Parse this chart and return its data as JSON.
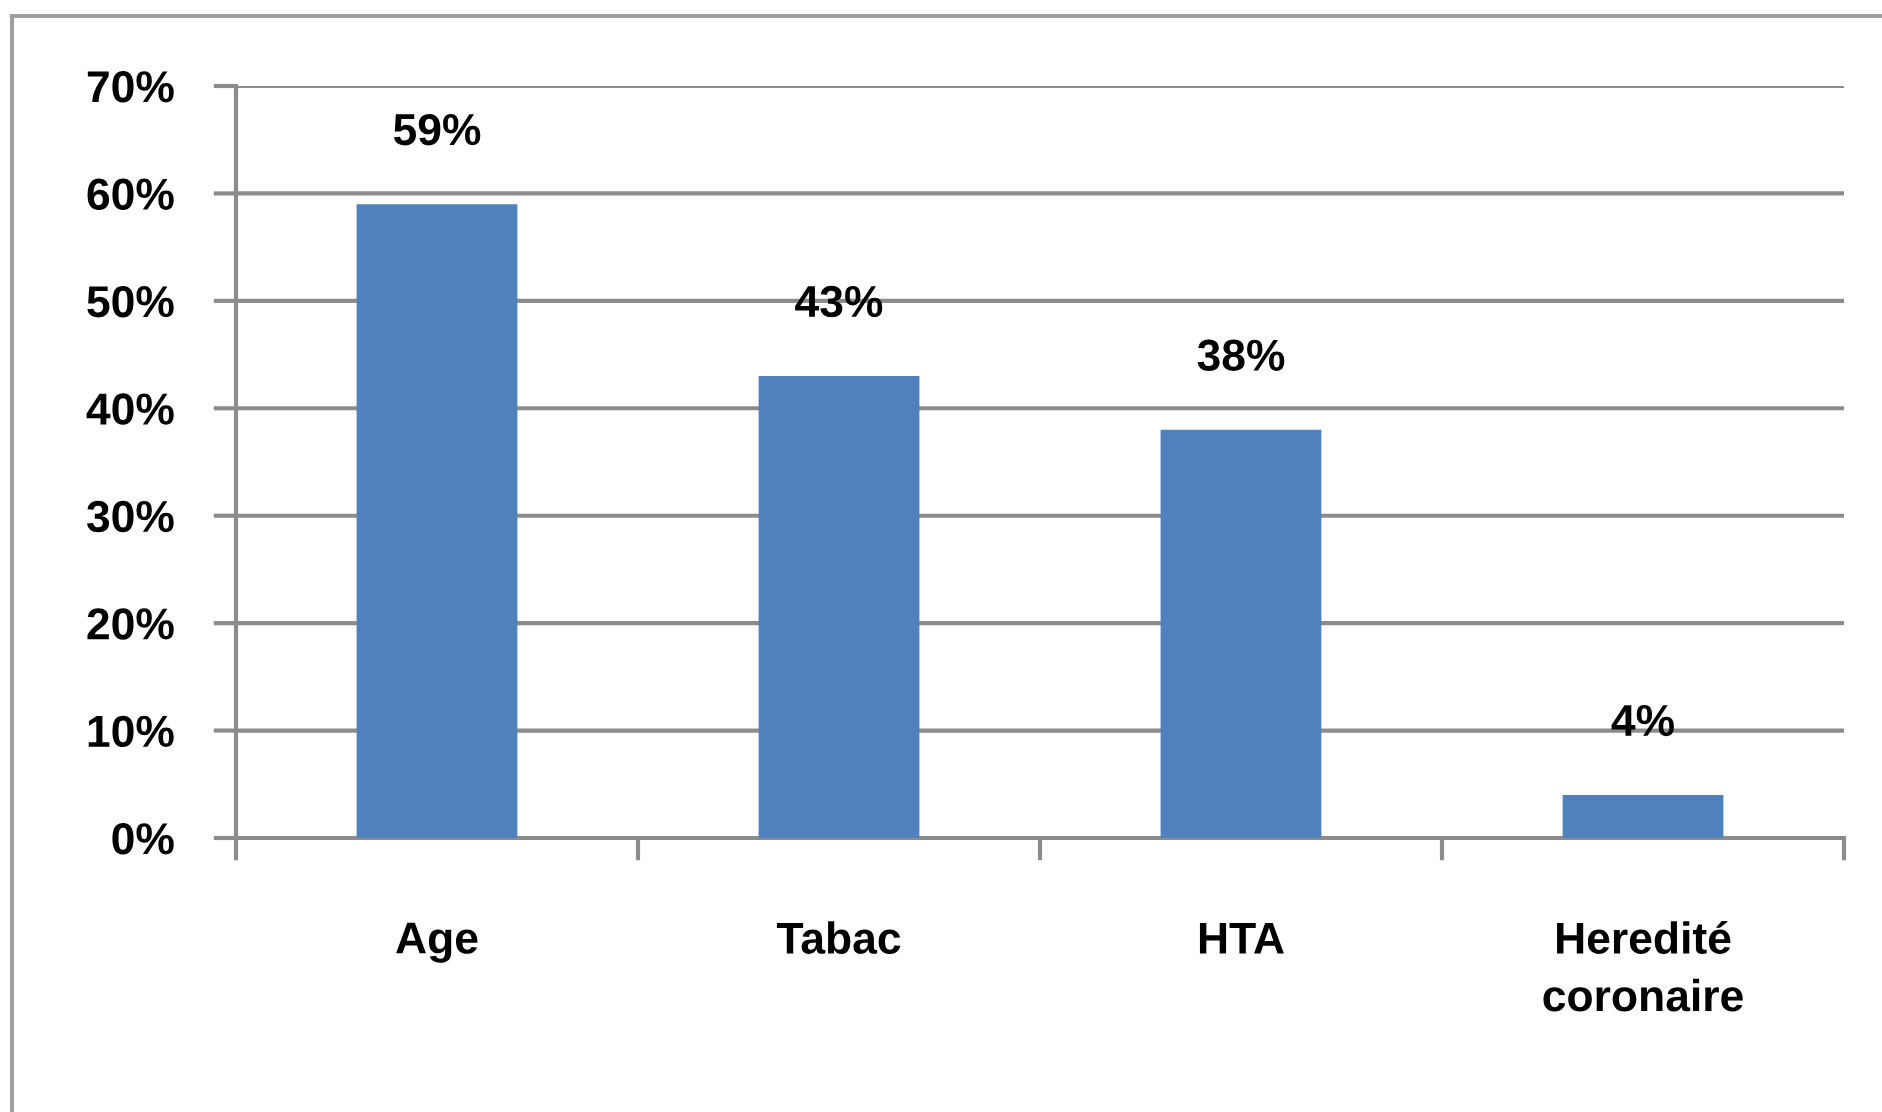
{
  "chart_data": {
    "type": "bar",
    "categories": [
      "Age",
      "Tabac",
      "HTA",
      "Heredité\ncoronaire"
    ],
    "values": [
      59,
      43,
      38,
      4
    ],
    "value_labels": [
      "59%",
      "43%",
      "38%",
      "4%"
    ],
    "color": "#4f81bd",
    "ylim": [
      0,
      70
    ],
    "yticks": [
      {
        "value": 0,
        "label": "0%"
      },
      {
        "value": 10,
        "label": "10%"
      },
      {
        "value": 20,
        "label": "20%"
      },
      {
        "value": 30,
        "label": "30%"
      },
      {
        "value": 40,
        "label": "40%"
      },
      {
        "value": 50,
        "label": "50%"
      },
      {
        "value": 60,
        "label": "60%"
      },
      {
        "value": 70,
        "label": "70%"
      }
    ],
    "grid": "y"
  }
}
